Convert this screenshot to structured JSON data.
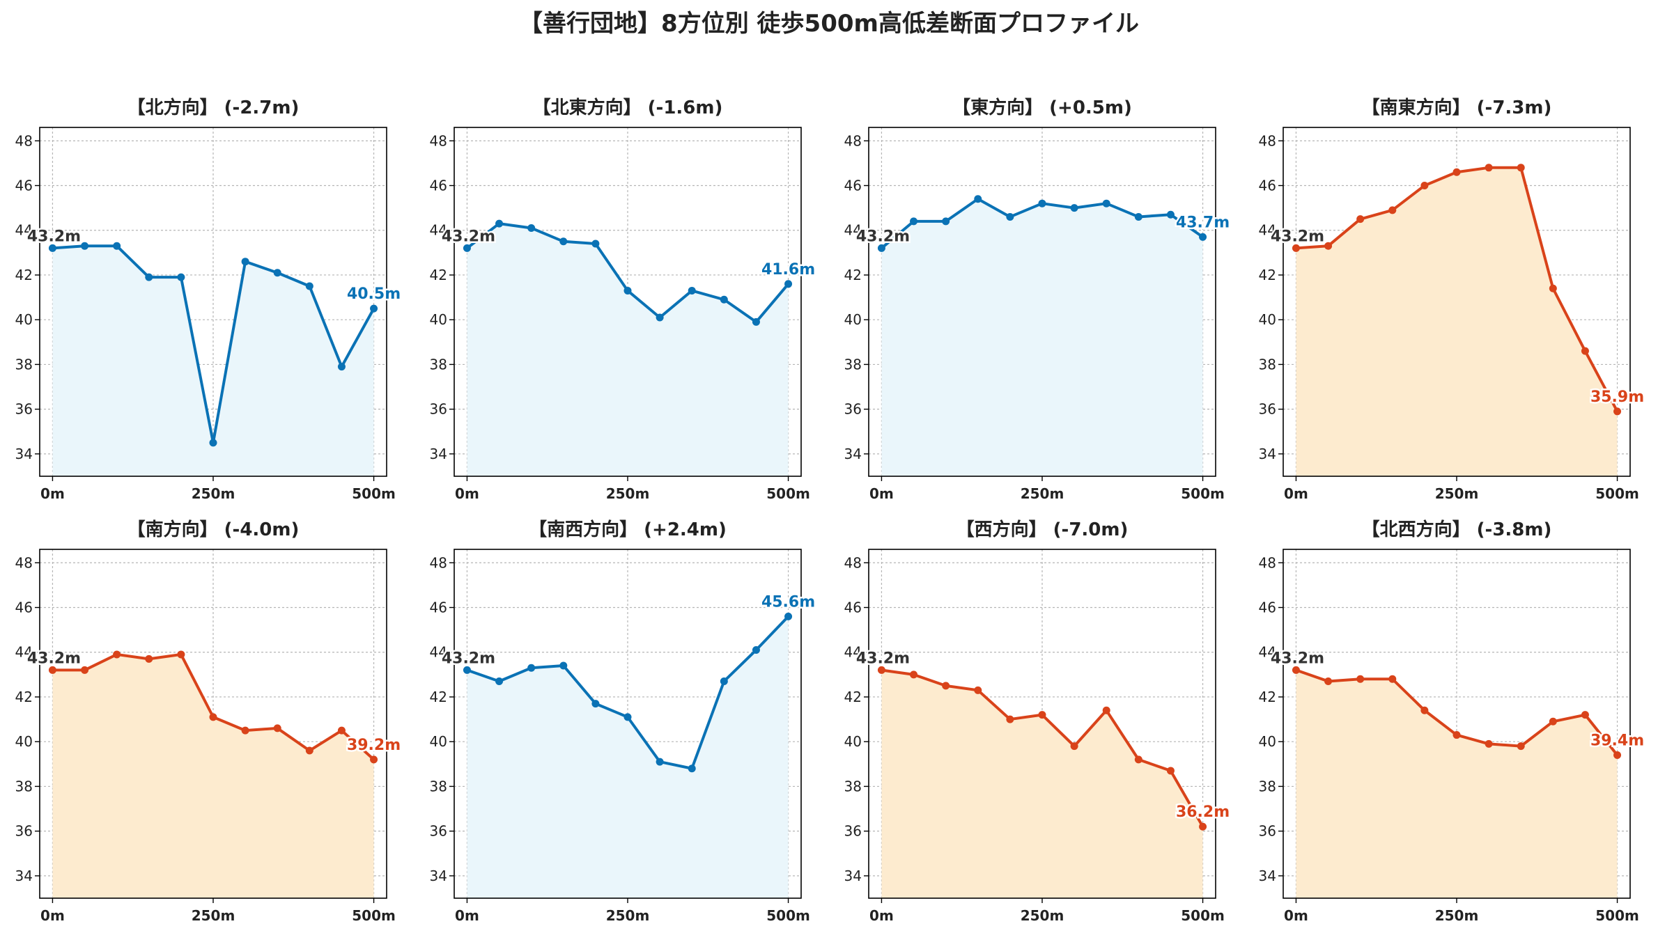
{
  "title": "【善行団地】8方位別 徒歩500m高低差断面プロファイル",
  "colors": {
    "up_line": "#0a72b5",
    "up_fill": "#eaf6fb",
    "down_line": "#d9431a",
    "down_fill": "#fdebcf",
    "start_label": "#333333"
  },
  "chart_data": [
    {
      "type": "area",
      "title": "【北方向】 (-2.7m)",
      "trend": "up",
      "x": [
        0,
        50,
        100,
        150,
        200,
        250,
        300,
        350,
        400,
        450,
        500
      ],
      "y": [
        43.2,
        43.3,
        43.3,
        41.9,
        41.9,
        34.5,
        42.6,
        42.1,
        41.5,
        37.9,
        40.5
      ],
      "start_label": "43.2m",
      "end_label": "40.5m",
      "x_ticks": [
        "0m",
        "250m",
        "500m"
      ],
      "x_tick_values": [
        0,
        250,
        500
      ],
      "y_ticks": [
        "34",
        "36",
        "38",
        "40",
        "42",
        "44",
        "46",
        "48"
      ],
      "y_tick_values": [
        34,
        36,
        38,
        40,
        42,
        44,
        46,
        48
      ],
      "xlim": [
        -20,
        520
      ],
      "ylim": [
        33,
        48.6
      ],
      "grid": true
    },
    {
      "type": "area",
      "title": "【北東方向】 (-1.6m)",
      "trend": "up",
      "x": [
        0,
        50,
        100,
        150,
        200,
        250,
        300,
        350,
        400,
        450,
        500
      ],
      "y": [
        43.2,
        44.3,
        44.1,
        43.5,
        43.4,
        41.3,
        40.1,
        41.3,
        40.9,
        39.9,
        41.6
      ],
      "start_label": "43.2m",
      "end_label": "41.6m",
      "x_ticks": [
        "0m",
        "250m",
        "500m"
      ],
      "x_tick_values": [
        0,
        250,
        500
      ],
      "y_ticks": [
        "34",
        "36",
        "38",
        "40",
        "42",
        "44",
        "46",
        "48"
      ],
      "y_tick_values": [
        34,
        36,
        38,
        40,
        42,
        44,
        46,
        48
      ],
      "xlim": [
        -20,
        520
      ],
      "ylim": [
        33,
        48.6
      ],
      "grid": true
    },
    {
      "type": "area",
      "title": "【東方向】 (+0.5m)",
      "trend": "up",
      "x": [
        0,
        50,
        100,
        150,
        200,
        250,
        300,
        350,
        400,
        450,
        500
      ],
      "y": [
        43.2,
        44.4,
        44.4,
        45.4,
        44.6,
        45.2,
        45.0,
        45.2,
        44.6,
        44.7,
        43.7
      ],
      "start_label": "43.2m",
      "end_label": "43.7m",
      "x_ticks": [
        "0m",
        "250m",
        "500m"
      ],
      "x_tick_values": [
        0,
        250,
        500
      ],
      "y_ticks": [
        "34",
        "36",
        "38",
        "40",
        "42",
        "44",
        "46",
        "48"
      ],
      "y_tick_values": [
        34,
        36,
        38,
        40,
        42,
        44,
        46,
        48
      ],
      "xlim": [
        -20,
        520
      ],
      "ylim": [
        33,
        48.6
      ],
      "grid": true
    },
    {
      "type": "area",
      "title": "【南東方向】 (-7.3m)",
      "trend": "down",
      "x": [
        0,
        50,
        100,
        150,
        200,
        250,
        300,
        350,
        400,
        450,
        500
      ],
      "y": [
        43.2,
        43.3,
        44.5,
        44.9,
        46.0,
        46.6,
        46.8,
        46.8,
        41.4,
        38.6,
        35.9
      ],
      "start_label": "43.2m",
      "end_label": "35.9m",
      "x_ticks": [
        "0m",
        "250m",
        "500m"
      ],
      "x_tick_values": [
        0,
        250,
        500
      ],
      "y_ticks": [
        "34",
        "36",
        "38",
        "40",
        "42",
        "44",
        "46",
        "48"
      ],
      "y_tick_values": [
        34,
        36,
        38,
        40,
        42,
        44,
        46,
        48
      ],
      "xlim": [
        -20,
        520
      ],
      "ylim": [
        33,
        48.6
      ],
      "grid": true
    },
    {
      "type": "area",
      "title": "【南方向】 (-4.0m)",
      "trend": "down",
      "x": [
        0,
        50,
        100,
        150,
        200,
        250,
        300,
        350,
        400,
        450,
        500
      ],
      "y": [
        43.2,
        43.2,
        43.9,
        43.7,
        43.9,
        41.1,
        40.5,
        40.6,
        39.6,
        40.5,
        39.2
      ],
      "start_label": "43.2m",
      "end_label": "39.2m",
      "x_ticks": [
        "0m",
        "250m",
        "500m"
      ],
      "x_tick_values": [
        0,
        250,
        500
      ],
      "y_ticks": [
        "34",
        "36",
        "38",
        "40",
        "42",
        "44",
        "46",
        "48"
      ],
      "y_tick_values": [
        34,
        36,
        38,
        40,
        42,
        44,
        46,
        48
      ],
      "xlim": [
        -20,
        520
      ],
      "ylim": [
        33,
        48.6
      ],
      "grid": true
    },
    {
      "type": "area",
      "title": "【南西方向】 (+2.4m)",
      "trend": "up",
      "x": [
        0,
        50,
        100,
        150,
        200,
        250,
        300,
        350,
        400,
        450,
        500
      ],
      "y": [
        43.2,
        42.7,
        43.3,
        43.4,
        41.7,
        41.1,
        39.1,
        38.8,
        42.7,
        44.1,
        45.6
      ],
      "start_label": "43.2m",
      "end_label": "45.6m",
      "x_ticks": [
        "0m",
        "250m",
        "500m"
      ],
      "x_tick_values": [
        0,
        250,
        500
      ],
      "y_ticks": [
        "34",
        "36",
        "38",
        "40",
        "42",
        "44",
        "46",
        "48"
      ],
      "y_tick_values": [
        34,
        36,
        38,
        40,
        42,
        44,
        46,
        48
      ],
      "xlim": [
        -20,
        520
      ],
      "ylim": [
        33,
        48.6
      ],
      "grid": true
    },
    {
      "type": "area",
      "title": "【西方向】 (-7.0m)",
      "trend": "down",
      "x": [
        0,
        50,
        100,
        150,
        200,
        250,
        300,
        350,
        400,
        450,
        500
      ],
      "y": [
        43.2,
        43.0,
        42.5,
        42.3,
        41.0,
        41.2,
        39.8,
        41.4,
        39.2,
        38.7,
        36.2
      ],
      "start_label": "43.2m",
      "end_label": "36.2m",
      "x_ticks": [
        "0m",
        "250m",
        "500m"
      ],
      "x_tick_values": [
        0,
        250,
        500
      ],
      "y_ticks": [
        "34",
        "36",
        "38",
        "40",
        "42",
        "44",
        "46",
        "48"
      ],
      "y_tick_values": [
        34,
        36,
        38,
        40,
        42,
        44,
        46,
        48
      ],
      "xlim": [
        -20,
        520
      ],
      "ylim": [
        33,
        48.6
      ],
      "grid": true
    },
    {
      "type": "area",
      "title": "【北西方向】 (-3.8m)",
      "trend": "down",
      "x": [
        0,
        50,
        100,
        150,
        200,
        250,
        300,
        350,
        400,
        450,
        500
      ],
      "y": [
        43.2,
        42.7,
        42.8,
        42.8,
        41.4,
        40.3,
        39.9,
        39.8,
        40.9,
        41.2,
        39.4
      ],
      "start_label": "43.2m",
      "end_label": "39.4m",
      "x_ticks": [
        "0m",
        "250m",
        "500m"
      ],
      "x_tick_values": [
        0,
        250,
        500
      ],
      "y_ticks": [
        "34",
        "36",
        "38",
        "40",
        "42",
        "44",
        "46",
        "48"
      ],
      "y_tick_values": [
        34,
        36,
        38,
        40,
        42,
        44,
        46,
        48
      ],
      "xlim": [
        -20,
        520
      ],
      "ylim": [
        33,
        48.6
      ],
      "grid": true
    }
  ]
}
